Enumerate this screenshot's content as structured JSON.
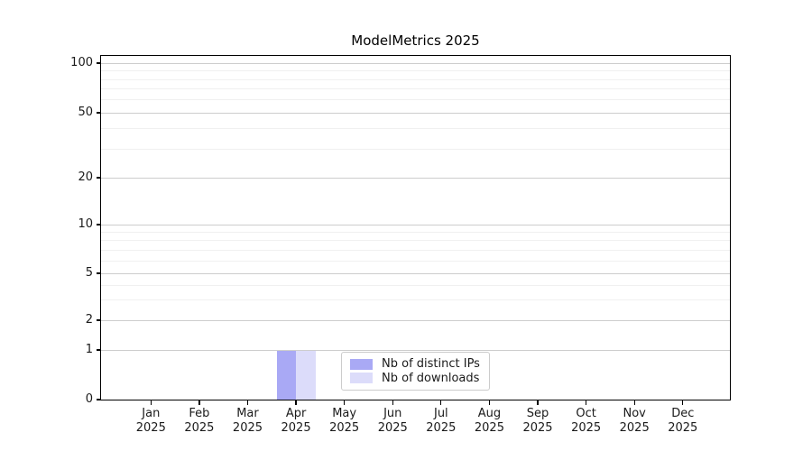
{
  "title": "ModelMetrics 2025",
  "y_axis": {
    "tick_labels": [
      "100",
      "50",
      "20",
      "10",
      "5",
      "2",
      "1",
      "0"
    ]
  },
  "x_axis": {
    "months": [
      "Jan",
      "Feb",
      "Mar",
      "Apr",
      "May",
      "Jun",
      "Jul",
      "Aug",
      "Sep",
      "Oct",
      "Nov",
      "Dec"
    ],
    "year": "2025"
  },
  "legend": {
    "items": [
      {
        "label": "Nb of distinct IPs",
        "color": "#a9a9f5"
      },
      {
        "label": "Nb of downloads",
        "color": "#dcdcfa"
      }
    ]
  },
  "chart_data": {
    "type": "bar",
    "title": "ModelMetrics 2025",
    "categories": [
      "Jan 2025",
      "Feb 2025",
      "Mar 2025",
      "Apr 2025",
      "May 2025",
      "Jun 2025",
      "Jul 2025",
      "Aug 2025",
      "Sep 2025",
      "Oct 2025",
      "Nov 2025",
      "Dec 2025"
    ],
    "series": [
      {
        "name": "Nb of distinct IPs",
        "color": "#a9a9f5",
        "values": [
          0,
          0,
          0,
          1,
          0,
          0,
          0,
          0,
          0,
          0,
          0,
          0
        ]
      },
      {
        "name": "Nb of downloads",
        "color": "#dcdcfa",
        "values": [
          0,
          0,
          0,
          1,
          0,
          0,
          0,
          0,
          0,
          0,
          0,
          0
        ]
      }
    ],
    "yscale": "symlog",
    "ylim": [
      0,
      110
    ],
    "y_ticks": [
      0,
      1,
      2,
      5,
      10,
      20,
      50,
      100
    ],
    "grid": "horizontal, major and minor log gridlines",
    "legend_position": "lower center",
    "xlabel": "",
    "ylabel": ""
  }
}
